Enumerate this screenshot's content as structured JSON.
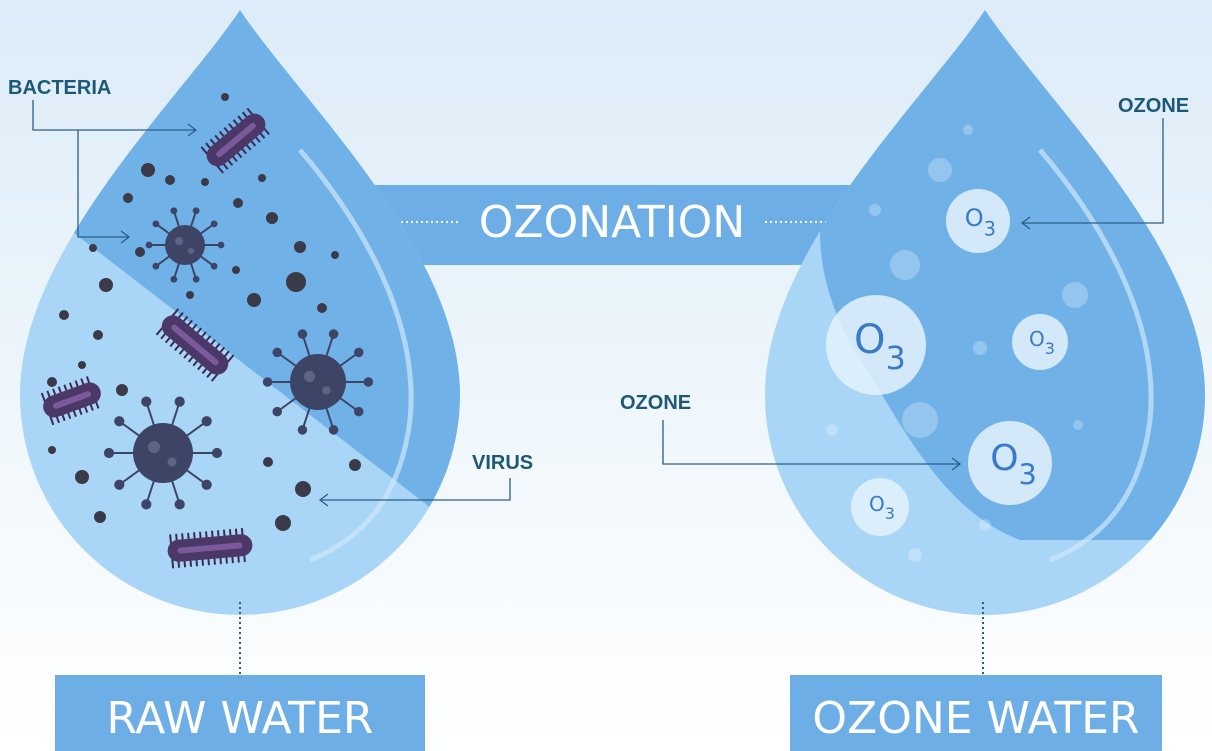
{
  "labels": {
    "bacteria": "BACTERIA",
    "virus": "VIRUS",
    "ozone_right": "OZONE",
    "ozone_middle": "OZONE"
  },
  "process": "OZONATION",
  "raw_water": "RAW WATER",
  "ozone_water": "OZONE WATER",
  "molecules": [
    {
      "symbol": "O",
      "subscript": "3"
    },
    {
      "symbol": "O",
      "subscript": "3"
    },
    {
      "symbol": "O",
      "subscript": "3"
    },
    {
      "symbol": "O",
      "subscript": "3"
    },
    {
      "symbol": "O",
      "subscript": "3"
    }
  ]
}
